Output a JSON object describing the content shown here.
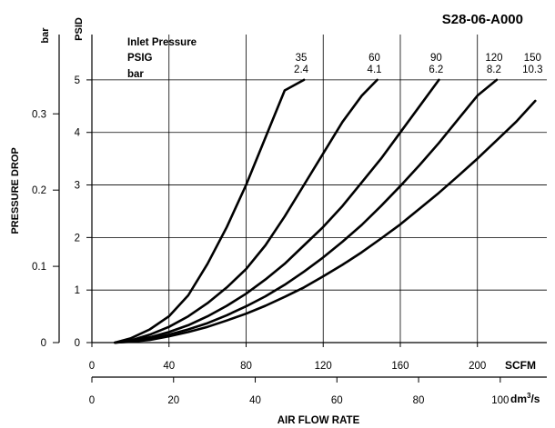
{
  "chart_data": {
    "type": "line",
    "title": "S28-06-A000",
    "xlabel": "AIR FLOW RATE",
    "ylabel": "PRESSURE DROP",
    "x_primary": {
      "unit": "SCFM",
      "range": [
        0,
        236
      ],
      "ticks": [
        "0",
        "40",
        "80",
        "120",
        "160",
        "200"
      ],
      "tick_values": [
        0,
        40,
        80,
        120,
        160,
        200
      ]
    },
    "x_secondary": {
      "unit": "dm³/s",
      "unit_main": "dm",
      "unit_sup": "3",
      "unit_tail": "/s",
      "range": [
        0,
        111.4
      ],
      "ticks": [
        "0",
        "20",
        "40",
        "60",
        "80",
        "100"
      ],
      "tick_values": [
        0,
        20,
        40,
        60,
        80,
        100
      ]
    },
    "y_primary": {
      "unit": "PSID",
      "range": [
        0,
        5.5
      ],
      "ticks": [
        "0",
        "1",
        "2",
        "3",
        "4",
        "5"
      ],
      "tick_values": [
        0,
        1,
        2,
        3,
        4,
        5
      ]
    },
    "y_secondary": {
      "unit": "bar",
      "range": [
        0,
        0.379
      ],
      "ticks": [
        "0",
        "0.1",
        "0.2",
        "0.3"
      ],
      "tick_values": [
        0,
        0.1,
        0.2,
        0.3
      ]
    },
    "grid": true,
    "legend": {
      "title": "Inlet Pressure",
      "row1_label": "PSIG",
      "row2_label": "bar",
      "placement": "top-left"
    },
    "series": [
      {
        "psig": "35",
        "bar": "2.4",
        "x": [
          12,
          20,
          30,
          40,
          50,
          60,
          70,
          80,
          90,
          100,
          110,
          120
        ],
        "y": [
          0,
          0.08,
          0.25,
          0.5,
          0.9,
          1.5,
          2.2,
          3.0,
          3.9,
          4.8,
          5.0,
          5.0
        ]
      },
      {
        "psig": "60",
        "bar": "4.1",
        "x": [
          12,
          20,
          30,
          40,
          50,
          60,
          70,
          80,
          90,
          100,
          110,
          120,
          130,
          140,
          148
        ],
        "y": [
          0,
          0.04,
          0.15,
          0.3,
          0.5,
          0.75,
          1.05,
          1.4,
          1.85,
          2.4,
          3.0,
          3.6,
          4.2,
          4.7,
          5.0
        ]
      },
      {
        "psig": "90",
        "bar": "6.2",
        "x": [
          12,
          20,
          30,
          40,
          50,
          60,
          70,
          80,
          90,
          100,
          110,
          120,
          130,
          140,
          150,
          160,
          170,
          180
        ],
        "y": [
          0,
          0.03,
          0.1,
          0.2,
          0.33,
          0.5,
          0.7,
          0.93,
          1.2,
          1.5,
          1.85,
          2.2,
          2.6,
          3.05,
          3.5,
          4.0,
          4.5,
          5.0
        ]
      },
      {
        "psig": "120",
        "bar": "8.2",
        "x": [
          12,
          20,
          30,
          40,
          50,
          60,
          70,
          80,
          90,
          100,
          110,
          120,
          130,
          140,
          150,
          160,
          170,
          180,
          190,
          200,
          210
        ],
        "y": [
          0,
          0.02,
          0.07,
          0.15,
          0.25,
          0.37,
          0.52,
          0.69,
          0.88,
          1.1,
          1.35,
          1.62,
          1.92,
          2.24,
          2.6,
          2.98,
          3.38,
          3.8,
          4.25,
          4.7,
          5.0
        ]
      },
      {
        "psig": "150",
        "bar": "10.3",
        "x": [
          12,
          20,
          30,
          40,
          50,
          60,
          70,
          80,
          90,
          100,
          110,
          120,
          130,
          140,
          150,
          160,
          170,
          180,
          190,
          200,
          210,
          220,
          230
        ],
        "y": [
          0,
          0.015,
          0.05,
          0.12,
          0.2,
          0.3,
          0.42,
          0.55,
          0.7,
          0.87,
          1.05,
          1.26,
          1.48,
          1.72,
          1.98,
          2.25,
          2.55,
          2.85,
          3.17,
          3.5,
          3.85,
          4.2,
          4.6
        ]
      }
    ]
  }
}
